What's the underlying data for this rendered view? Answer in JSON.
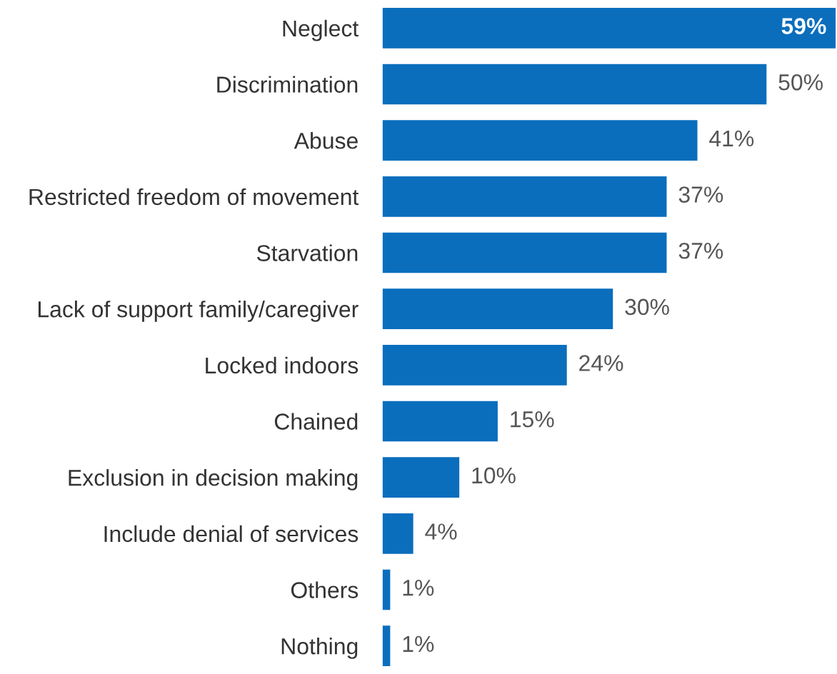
{
  "chart_data": {
    "type": "bar",
    "orientation": "horizontal",
    "categories": [
      "Neglect",
      "Discrimination",
      "Abuse",
      "Restricted freedom of movement",
      "Starvation",
      "Lack of support family/caregiver",
      "Locked indoors",
      "Chained",
      "Exclusion in decision making",
      "Include denial of services",
      "Others",
      "Nothing"
    ],
    "values": [
      59,
      50,
      41,
      37,
      37,
      30,
      24,
      15,
      10,
      4,
      1,
      1
    ],
    "value_labels": [
      "59%",
      "50%",
      "41%",
      "37%",
      "37%",
      "30%",
      "24%",
      "15%",
      "10%",
      "4%",
      "1%",
      "1%"
    ],
    "color": "#0a6ebd",
    "grid": false,
    "legend": false
  }
}
